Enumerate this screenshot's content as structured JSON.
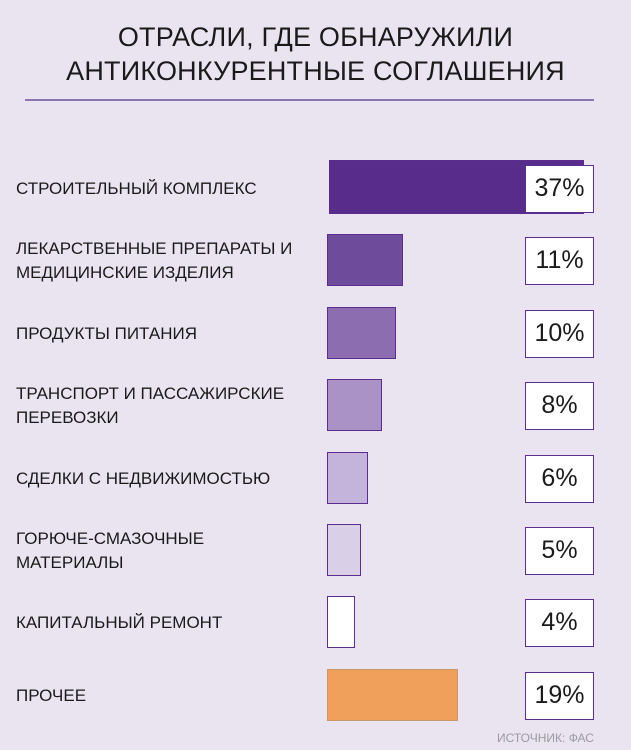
{
  "chart_data": {
    "type": "bar",
    "orientation": "horizontal",
    "title": [
      "ОТРАСЛИ, ГДЕ ОБНАРУЖИЛИ",
      "АНТИКОНКУРЕНТНЫЕ СОГЛАШЕНИЯ"
    ],
    "categories": [
      [
        "СТРОИТЕЛЬНЫЙ КОМПЛЕКС"
      ],
      [
        "ЛЕКАРСТВЕННЫЕ ПРЕПАРАТЫ И",
        "МЕДИЦИНСКИЕ ИЗДЕЛИЯ"
      ],
      [
        "ПРОДУКТЫ ПИТАНИЯ"
      ],
      [
        "ТРАНСПОРТ И ПАССАЖИРСКИЕ",
        "ПЕРЕВОЗКИ"
      ],
      [
        "СДЕЛКИ С НЕДВИЖИМОСТЬЮ"
      ],
      [
        "ГОРЮЧЕ-СМАЗОЧНЫЕ",
        "МАТЕРИАЛЫ"
      ],
      [
        "КАПИТАЛЬНЫЙ РЕМОНТ"
      ],
      [
        "ПРОЧЕЕ"
      ]
    ],
    "values": [
      37,
      11,
      10,
      8,
      6,
      5,
      4,
      19
    ],
    "value_labels": [
      "37%",
      "11%",
      "10%",
      "8%",
      "6%",
      "5%",
      "4%",
      "19%"
    ],
    "colors": [
      "#582c8b",
      "#6f4c9b",
      "#8c6db0",
      "#ab92c6",
      "#c4b3da",
      "#d9d0e7",
      "#ffffff",
      "#f1a05c"
    ],
    "source": "ИСТОЧНИК: ФАС"
  }
}
